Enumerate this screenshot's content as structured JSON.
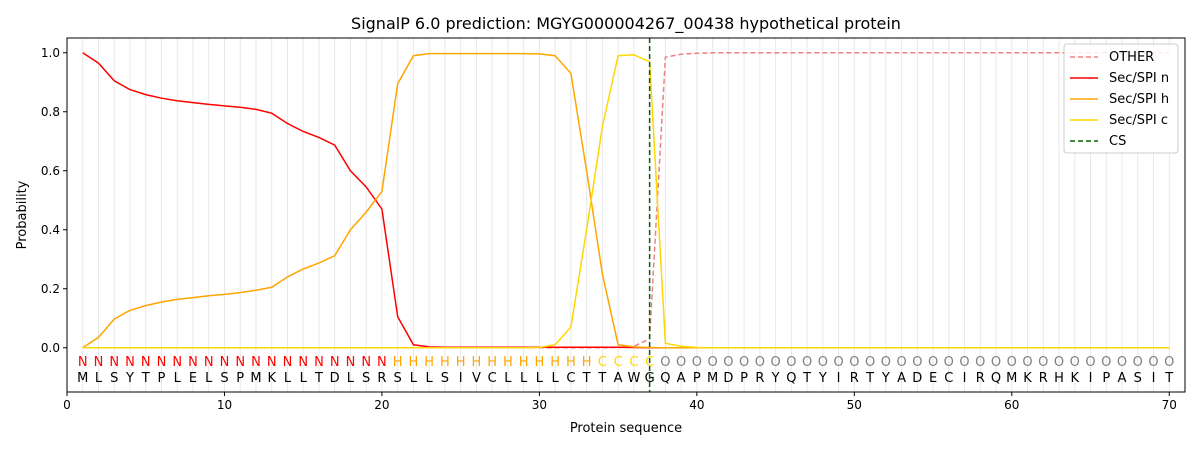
{
  "chart_data": {
    "type": "line",
    "title": "SignalP 6.0 prediction: MGYG000004267_00438 hypothetical protein",
    "xlabel": "Protein sequence",
    "ylabel": "Probability",
    "xlim": [
      0,
      71
    ],
    "ylim": [
      -0.15,
      1.05
    ],
    "xticks": [
      0,
      10,
      20,
      30,
      40,
      50,
      60,
      70
    ],
    "yticks": [
      0.0,
      0.2,
      0.4,
      0.6,
      0.8,
      1.0
    ],
    "legend_position": "top-right",
    "sequence": [
      "M",
      "L",
      "S",
      "Y",
      "T",
      "P",
      "L",
      "E",
      "L",
      "S",
      "P",
      "M",
      "K",
      "L",
      "L",
      "T",
      "D",
      "L",
      "S",
      "R",
      "S",
      "L",
      "L",
      "S",
      "I",
      "V",
      "C",
      "L",
      "L",
      "L",
      "L",
      "C",
      "T",
      "T",
      "A",
      "W",
      "G",
      "Q",
      "A",
      "P",
      "M",
      "D",
      "P",
      "R",
      "Y",
      "Q",
      "T",
      "Y",
      "I",
      "R",
      "T",
      "Y",
      "A",
      "D",
      "E",
      "C",
      "I",
      "R",
      "Q",
      "M",
      "K",
      "R",
      "H",
      "K",
      "I",
      "P",
      "A",
      "S",
      "I",
      "T"
    ],
    "labels": [
      "N",
      "N",
      "N",
      "N",
      "N",
      "N",
      "N",
      "N",
      "N",
      "N",
      "N",
      "N",
      "N",
      "N",
      "N",
      "N",
      "N",
      "N",
      "N",
      "N",
      "H",
      "H",
      "H",
      "H",
      "H",
      "H",
      "H",
      "H",
      "H",
      "H",
      "H",
      "H",
      "H",
      "C",
      "C",
      "C",
      "C",
      "O",
      "O",
      "O",
      "O",
      "O",
      "O",
      "O",
      "O",
      "O",
      "O",
      "O",
      "O",
      "O",
      "O",
      "O",
      "O",
      "O",
      "O",
      "O",
      "O",
      "O",
      "O",
      "O",
      "O",
      "O",
      "O",
      "O",
      "O",
      "O",
      "O",
      "O",
      "O",
      "O"
    ],
    "label_colors": {
      "N": "#ff0000",
      "H": "#ffa500",
      "C": "#ffd700",
      "O": "#808080"
    },
    "cs_position": 37,
    "series": [
      {
        "name": "OTHER",
        "color": "#f08080",
        "dash": true,
        "values": [
          0,
          0,
          0,
          0,
          0,
          0,
          0,
          0,
          0,
          0,
          0,
          0,
          0,
          0,
          0,
          0,
          0,
          0,
          0,
          0,
          0,
          0,
          0,
          0,
          0,
          0,
          0,
          0,
          0,
          0,
          0,
          0,
          0,
          0,
          0.001,
          0.005,
          0.03,
          0.985,
          0.995,
          0.998,
          1,
          1,
          1,
          1,
          1,
          1,
          1,
          1,
          1,
          1,
          1,
          1,
          1,
          1,
          1,
          1,
          1,
          1,
          1,
          1,
          1,
          1,
          1,
          1,
          1,
          1,
          1,
          1,
          1,
          1
        ]
      },
      {
        "name": "Sec/SPI n",
        "color": "#ff0000",
        "values": [
          1.0,
          0.965,
          0.905,
          0.875,
          0.858,
          0.846,
          0.837,
          0.831,
          0.825,
          0.82,
          0.815,
          0.808,
          0.795,
          0.76,
          0.733,
          0.713,
          0.687,
          0.6,
          0.545,
          0.47,
          0.105,
          0.01,
          0.003,
          0.002,
          0.002,
          0.002,
          0.002,
          0.002,
          0.002,
          0.002,
          0.002,
          0.002,
          0.002,
          0.002,
          0.002,
          0.001,
          0,
          0,
          0,
          0,
          0,
          0,
          0,
          0,
          0,
          0,
          0,
          0,
          0,
          0,
          0,
          0,
          0,
          0,
          0,
          0,
          0,
          0,
          0,
          0,
          0,
          0,
          0,
          0,
          0,
          0,
          0,
          0,
          0,
          0
        ]
      },
      {
        "name": "Sec/SPI h",
        "color": "#ffa500",
        "values": [
          0,
          0.035,
          0.097,
          0.127,
          0.143,
          0.155,
          0.164,
          0.17,
          0.176,
          0.181,
          0.187,
          0.195,
          0.205,
          0.24,
          0.267,
          0.287,
          0.312,
          0.4,
          0.46,
          0.53,
          0.895,
          0.99,
          0.997,
          0.997,
          0.997,
          0.997,
          0.997,
          0.997,
          0.997,
          0.996,
          0.99,
          0.93,
          0.6,
          0.25,
          0.01,
          0.003,
          0.001,
          0,
          0,
          0,
          0,
          0,
          0,
          0,
          0,
          0,
          0,
          0,
          0,
          0,
          0,
          0,
          0,
          0,
          0,
          0,
          0,
          0,
          0,
          0,
          0,
          0,
          0,
          0,
          0,
          0,
          0,
          0,
          0,
          0
        ]
      },
      {
        "name": "Sec/SPI c",
        "color": "#ffd700",
        "values": [
          0,
          0,
          0,
          0,
          0,
          0,
          0,
          0,
          0,
          0,
          0,
          0,
          0,
          0,
          0,
          0,
          0,
          0,
          0,
          0,
          0,
          0,
          0,
          0,
          0,
          0,
          0,
          0,
          0,
          0.001,
          0.01,
          0.07,
          0.4,
          0.75,
          0.99,
          0.993,
          0.97,
          0.015,
          0.005,
          0.001,
          0,
          0,
          0,
          0,
          0,
          0,
          0,
          0,
          0,
          0,
          0,
          0,
          0,
          0,
          0,
          0,
          0,
          0,
          0,
          0,
          0,
          0,
          0,
          0,
          0,
          0,
          0,
          0,
          0,
          0
        ]
      }
    ],
    "cs_legend": "CS"
  }
}
